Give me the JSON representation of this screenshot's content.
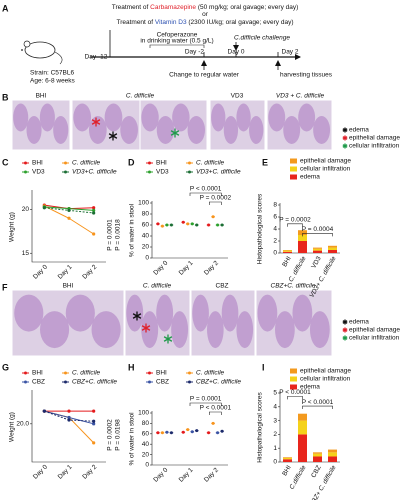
{
  "panel_letters": [
    "A",
    "B",
    "C",
    "D",
    "E",
    "F",
    "G",
    "H",
    "I"
  ],
  "schematic": {
    "treatment_cbz": [
      "Treatment of ",
      "Carbamazepine",
      " (50 mg/kg; oral gavage; every day)"
    ],
    "or": "or",
    "treatment_vd3": [
      "Treatment of ",
      "Vitamin D3",
      " (2300 IU/kg; oral gavage; every day)"
    ],
    "cefoperazone": [
      "Cefoperazone",
      "in drinking water (0.5 g/L)"
    ],
    "challenge": "C.difficile challenge",
    "days": [
      "Day -12",
      "Day -2",
      "Day 0",
      "Day 2"
    ],
    "regular_water": "Change to regular water",
    "harvest": "harvesting tissues",
    "strain": "Strain: C57BL6",
    "age": "Age: 6-8 weeks"
  },
  "histology_b": {
    "labels": [
      "BHI",
      "C. difficile",
      "VD3",
      "VD3 + C. difficile"
    ],
    "legend": [
      {
        "name": "edema",
        "color": "#111111"
      },
      {
        "name": "epithelial damage",
        "color": "#e0202a"
      },
      {
        "name": "cellular infiltration",
        "color": "#1f9a4a"
      }
    ]
  },
  "histology_f": {
    "labels": [
      "BHI",
      "C. difficile",
      "CBZ",
      "CBZ+C. difficile"
    ],
    "legend": [
      {
        "name": "edema",
        "color": "#111111"
      },
      {
        "name": "epithelial damage",
        "color": "#e0202a"
      },
      {
        "name": "cellular infiltration",
        "color": "#1f9a4a"
      }
    ]
  },
  "chart_data": [
    {
      "type": "line",
      "categories": [
        "Day 0",
        "Day 1",
        "Day 2"
      ],
      "y_label": "Weight (g)",
      "series": [
        {
          "name": "BHI",
          "color": "#e41a1c",
          "values": [
            20.5,
            20.1,
            20.2
          ]
        },
        {
          "name": "C. difficile",
          "color": "#f7941d",
          "values": [
            20.4,
            19.0,
            17.2
          ]
        },
        {
          "name": "VD3",
          "color": "#2ca02c",
          "values": [
            20.3,
            20.1,
            19.9
          ]
        },
        {
          "name": "VD3+C. difficile",
          "color": "#1b6e34",
          "values": [
            20.2,
            19.9,
            19.6
          ]
        }
      ],
      "ylim": [
        14,
        22
      ],
      "yticks": [
        15,
        20
      ],
      "annotations": [
        "P = 0.0001",
        "P = 0.0018"
      ]
    },
    {
      "type": "strip",
      "categories": [
        "Day 0",
        "Day 1",
        "Day 2"
      ],
      "y_label": "% of water in stool",
      "series": [
        {
          "name": "BHI",
          "color": "#e41a1c",
          "values": [
            62,
            65,
            60
          ]
        },
        {
          "name": "C. difficile",
          "color": "#f7941d",
          "values": [
            58,
            62,
            75
          ]
        },
        {
          "name": "VD3",
          "color": "#2ca02c",
          "values": [
            60,
            62,
            60
          ]
        },
        {
          "name": "VD3+C. difficile",
          "color": "#1b6e34",
          "values": [
            60,
            60,
            60
          ]
        }
      ],
      "ylim": [
        0,
        100
      ],
      "yticks": [
        0,
        20,
        40,
        60,
        80,
        100
      ],
      "annotations": [
        "P < 0.0001",
        "P = 0.0002"
      ]
    },
    {
      "type": "stacked_bar",
      "categories": [
        "BHI",
        "C. difficile",
        "VD3",
        "VD3+ C. difficile"
      ],
      "y_label": "Histopathological scores",
      "series": [
        {
          "name": "edema",
          "color": "#e8251c",
          "values": [
            0.2,
            2.0,
            0.4,
            0.5
          ]
        },
        {
          "name": "cellular infiltration",
          "color": "#f5d21b",
          "values": [
            0.2,
            1.0,
            0.3,
            0.4
          ]
        },
        {
          "name": "epithelial damage",
          "color": "#f39a1e",
          "values": [
            0.1,
            0.8,
            0.2,
            0.3
          ]
        }
      ],
      "ylim": [
        0,
        8
      ],
      "yticks": [
        0,
        2,
        4,
        6,
        8
      ],
      "annotations": [
        "P = 0.0002",
        "P = 0.0004"
      ]
    },
    {
      "type": "line",
      "categories": [
        "Day 0",
        "Day 1",
        "Day 2"
      ],
      "y_label": "Weight (g)",
      "series": [
        {
          "name": "BHI",
          "color": "#e41a1c",
          "values": [
            21.0,
            21.0,
            21.0
          ]
        },
        {
          "name": "C. difficile",
          "color": "#f7941d",
          "values": [
            21.0,
            20.5,
            18.5
          ]
        },
        {
          "name": "CBZ",
          "color": "#3a53a4",
          "values": [
            21.0,
            20.5,
            20.0
          ]
        },
        {
          "name": "CBZ+C. difficile",
          "color": "#1c2a6b",
          "values": [
            21.0,
            20.3,
            20.2
          ]
        }
      ],
      "ylim": [
        17,
        22.5
      ],
      "yticks": [
        {
          "value": 20,
          "label": "20.0"
        }
      ],
      "annotations": [
        "P = 0.0002",
        "P = 0.0198"
      ]
    },
    {
      "type": "strip",
      "categories": [
        "Day 0",
        "Day 1",
        "Day 2"
      ],
      "y_label": "% of water in stool",
      "series": [
        {
          "name": "BHI",
          "color": "#e41a1c",
          "values": [
            62,
            63,
            62
          ]
        },
        {
          "name": "C. difficile",
          "color": "#f7941d",
          "values": [
            62,
            68,
            80
          ]
        },
        {
          "name": "CBZ",
          "color": "#3a53a4",
          "values": [
            63,
            64,
            62
          ]
        },
        {
          "name": "CBZ+C. difficile",
          "color": "#1c2a6b",
          "values": [
            62,
            66,
            65
          ]
        }
      ],
      "ylim": [
        0,
        100
      ],
      "yticks": [
        0,
        20,
        40,
        60,
        80,
        100
      ],
      "annotations": [
        "P = 0.0001",
        "P < 0.0001"
      ]
    },
    {
      "type": "stacked_bar",
      "categories": [
        "BHI",
        "C.difficile",
        "CBZ",
        "CBZ+ C. difficile"
      ],
      "y_label": "Histopathological scores",
      "series": [
        {
          "name": "edema",
          "color": "#e8251c",
          "values": [
            0.2,
            2.0,
            0.4,
            0.4
          ]
        },
        {
          "name": "cellular infiltration",
          "color": "#f5d21b",
          "values": [
            0.1,
            1.0,
            0.2,
            0.3
          ]
        },
        {
          "name": "epithelial damage",
          "color": "#f39a1e",
          "values": [
            0.05,
            0.5,
            0.1,
            0.2
          ]
        }
      ],
      "ylim": [
        0,
        5
      ],
      "yticks": [
        0,
        1,
        2,
        3,
        4,
        5
      ],
      "annotations": [
        "P < 0.0001",
        "P < 0.0001"
      ]
    }
  ]
}
